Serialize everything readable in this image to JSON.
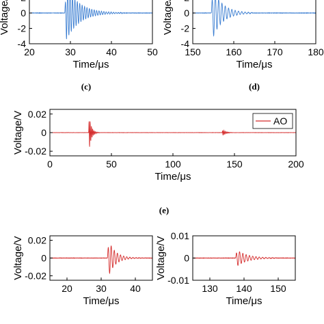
{
  "panel_labels": {
    "c": "(c)",
    "d": "(d)",
    "e": "(e)"
  },
  "chart_data": [
    {
      "id": "top-left",
      "type": "line",
      "color": "#3a7dd1",
      "xlabel": "Time/μs",
      "ylabel": "Voltage/V",
      "xlim": [
        20,
        50
      ],
      "ylim": [
        -4,
        4
      ],
      "xticks": [
        20,
        30,
        40,
        50
      ],
      "yticks": [
        2,
        0,
        -2,
        -4
      ],
      "signal": {
        "t0": 28.6,
        "amp": 4.0,
        "freq": 0.85,
        "decay": 0.32,
        "duration": 14
      }
    },
    {
      "id": "top-right",
      "type": "line",
      "color": "#3a7dd1",
      "xlabel": "Time/μs",
      "ylabel": "Voltage/V",
      "xlim": [
        150,
        180
      ],
      "ylim": [
        -4,
        4
      ],
      "xticks": [
        150,
        160,
        170,
        180
      ],
      "yticks": [
        2,
        0,
        -2,
        -4
      ],
      "signal": {
        "t0": 154.5,
        "amp": 3.8,
        "freq": 0.62,
        "decay": 0.42,
        "duration": 10
      }
    },
    {
      "id": "middle",
      "type": "line",
      "color": "#d42a2a",
      "xlabel": "Time/μs",
      "ylabel": "Voltage/V",
      "xlim": [
        0,
        200
      ],
      "ylim": [
        -0.025,
        0.025
      ],
      "xticks": [
        0,
        50,
        100,
        150,
        200
      ],
      "yticks": [
        0.02,
        0,
        -0.02
      ],
      "ytick_labels": [
        "0.02",
        "0",
        "-0.02"
      ],
      "legend": "AO",
      "legend_position": "top-right",
      "signals": [
        {
          "t0": 31.5,
          "amp": 0.024,
          "freq": 0.5,
          "decay": 0.55,
          "duration": 9
        },
        {
          "t0": 140.0,
          "amp": 0.004,
          "freq": 0.5,
          "decay": 0.4,
          "duration": 8
        }
      ]
    },
    {
      "id": "bottom-left",
      "type": "line",
      "color": "#d42a2a",
      "xlabel": "Time/μs",
      "ylabel": "Voltage/V",
      "xlim": [
        15,
        45
      ],
      "ylim": [
        -0.025,
        0.025
      ],
      "xticks": [
        20,
        30,
        40
      ],
      "yticks": [
        0.02,
        0,
        -0.02
      ],
      "ytick_labels": [
        "0.02",
        "0",
        "-0.02"
      ],
      "signal": {
        "t0": 31.8,
        "amp": 0.024,
        "freq": 0.55,
        "decay": 0.5,
        "duration": 12
      }
    },
    {
      "id": "bottom-right",
      "type": "line",
      "color": "#d42a2a",
      "xlabel": "Time/μs",
      "ylabel": "Voltage/V",
      "xlim": [
        125,
        155
      ],
      "ylim": [
        -0.01,
        0.01
      ],
      "xticks": [
        130,
        140,
        150
      ],
      "yticks": [
        0.01,
        0,
        -0.01
      ],
      "ytick_labels": [
        "0.01",
        "0",
        "-0.01"
      ],
      "signal": {
        "t0": 137.5,
        "amp": 0.0042,
        "freq": 0.52,
        "decay": 0.32,
        "duration": 12
      }
    }
  ]
}
